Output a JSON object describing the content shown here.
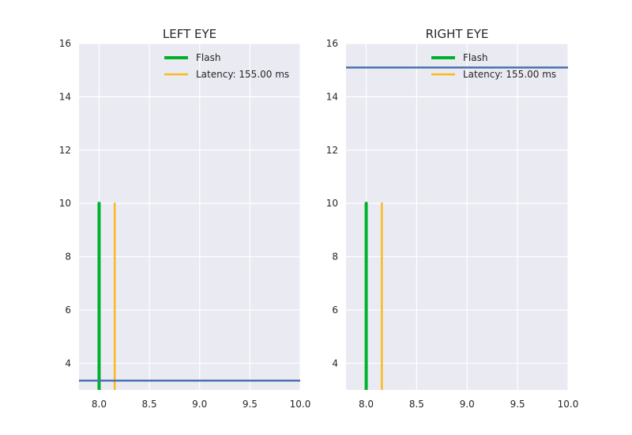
{
  "chart_data": [
    {
      "type": "line",
      "title": "LEFT EYE",
      "xlabel": "",
      "ylabel": "",
      "xlim": [
        7.8,
        10.0
      ],
      "ylim": [
        3.0,
        16.0
      ],
      "xticks": [
        8.0,
        8.5,
        9.0,
        9.5,
        10.0
      ],
      "xtick_labels": [
        "8.0",
        "8.5",
        "9.0",
        "9.5",
        "10.0"
      ],
      "yticks": [
        4,
        6,
        8,
        10,
        12,
        14,
        16
      ],
      "ytick_labels": [
        "4",
        "6",
        "8",
        "10",
        "12",
        "14",
        "16"
      ],
      "grid": true,
      "legend_position": "upper right",
      "series": [
        {
          "name": "Flash",
          "kind": "vline",
          "x": 8.0,
          "y": [
            3.0,
            10.0
          ],
          "color": "#00b22a"
        },
        {
          "name": "Latency: 155.00 ms",
          "kind": "vline",
          "x": 8.155,
          "y": [
            3.0,
            10.0
          ],
          "color": "#fbb91f"
        },
        {
          "kind": "hline",
          "x": [
            7.8,
            10.0
          ],
          "y": 3.35,
          "color": "#4c72b0"
        }
      ]
    },
    {
      "type": "line",
      "title": "RIGHT EYE",
      "xlabel": "",
      "ylabel": "",
      "xlim": [
        7.8,
        10.0
      ],
      "ylim": [
        3.0,
        16.0
      ],
      "xticks": [
        8.0,
        8.5,
        9.0,
        9.5,
        10.0
      ],
      "xtick_labels": [
        "8.0",
        "8.5",
        "9.0",
        "9.5",
        "10.0"
      ],
      "yticks": [
        4,
        6,
        8,
        10,
        12,
        14,
        16
      ],
      "ytick_labels": [
        "4",
        "6",
        "8",
        "10",
        "12",
        "14",
        "16"
      ],
      "grid": true,
      "legend_position": "upper right",
      "series": [
        {
          "name": "Flash",
          "kind": "vline",
          "x": 8.0,
          "y": [
            3.0,
            10.0
          ],
          "color": "#00b22a"
        },
        {
          "name": "Latency: 155.00 ms",
          "kind": "vline",
          "x": 8.155,
          "y": [
            3.0,
            10.0
          ],
          "color": "#fbb91f"
        },
        {
          "kind": "hline",
          "x": [
            7.8,
            10.0
          ],
          "y": 15.1,
          "color": "#4c72b0"
        }
      ]
    }
  ]
}
